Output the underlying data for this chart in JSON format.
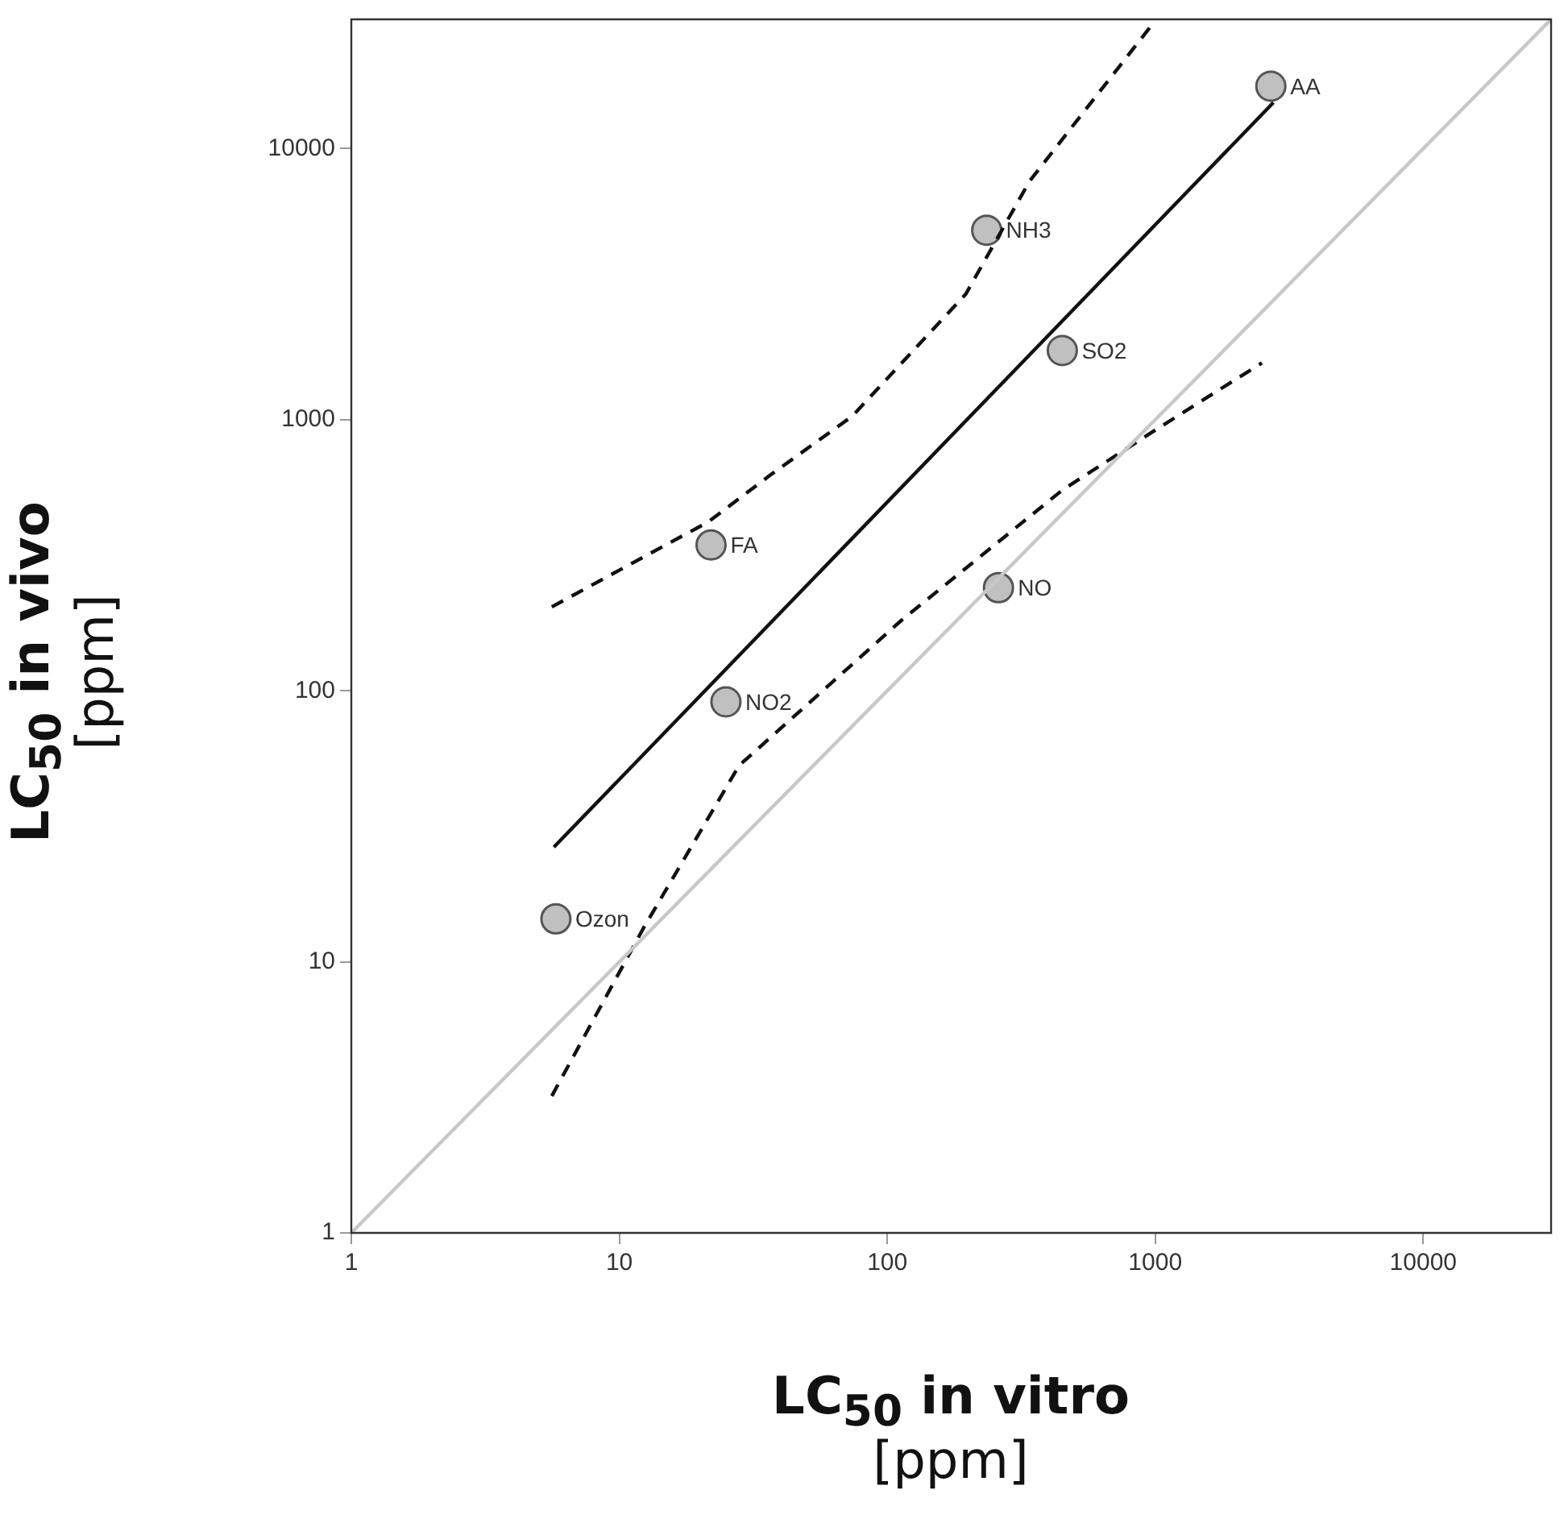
{
  "chart_data": {
    "type": "scatter",
    "xlabel": "LC$_{50}$ in vitro\n[ppm]",
    "ylabel": "LC$_{50}$ in vivo\n[ppm]",
    "log": "xy",
    "xlim": [
      1,
      30000
    ],
    "ylim": [
      1,
      30000
    ],
    "xticks": [
      1,
      10,
      100,
      1000,
      10000
    ],
    "yticks": [
      1,
      10,
      100,
      1000,
      10000
    ],
    "legend": false,
    "series": [
      {
        "type": "line",
        "color": "#c8c8c8",
        "line_style": "solid",
        "marker": "none",
        "x": [
          1,
          30000
        ],
        "values": [
          1,
          30000
        ]
      },
      {
        "type": "line",
        "color": "#111111",
        "line_style": "solid",
        "marker": "none",
        "x": [
          5.7,
          2760
        ],
        "values": [
          26.5,
          14800
        ]
      },
      {
        "type": "line",
        "color": "#111111",
        "line_style": "dashed",
        "marker": "none",
        "x": [
          5.6,
          21.5,
          37,
          74,
          196,
          340,
          955
        ],
        "values": [
          204,
          420,
          630,
          1030,
          2900,
          7600,
          28000
        ]
      },
      {
        "type": "line",
        "color": "#111111",
        "line_style": "dashed",
        "marker": "none",
        "x": [
          5.6,
          12.3,
          28,
          113,
          450,
          1025,
          2500
        ],
        "values": [
          3.2,
          13.3,
          53,
          182,
          550,
          930,
          1620
        ]
      },
      {
        "type": "scatter",
        "color": "#c0c0c0",
        "marker": "circle",
        "x": [
          2700,
          235,
          450,
          22,
          260,
          25,
          5.8
        ],
        "values": [
          17000,
          5000,
          1800,
          345,
          240,
          91,
          14.4
        ]
      }
    ],
    "annotations": [
      {
        "text": "AA",
        "x": 2700,
        "y": 17000
      },
      {
        "text": "NH3",
        "x": 235,
        "y": 5000
      },
      {
        "text": "SO2",
        "x": 450,
        "y": 1800
      },
      {
        "text": "FA",
        "x": 22,
        "y": 345
      },
      {
        "text": "NO",
        "x": 260,
        "y": 240
      },
      {
        "text": "NO2",
        "x": 25,
        "y": 91
      },
      {
        "text": "Ozon",
        "x": 5.8,
        "y": 14.4
      }
    ]
  }
}
